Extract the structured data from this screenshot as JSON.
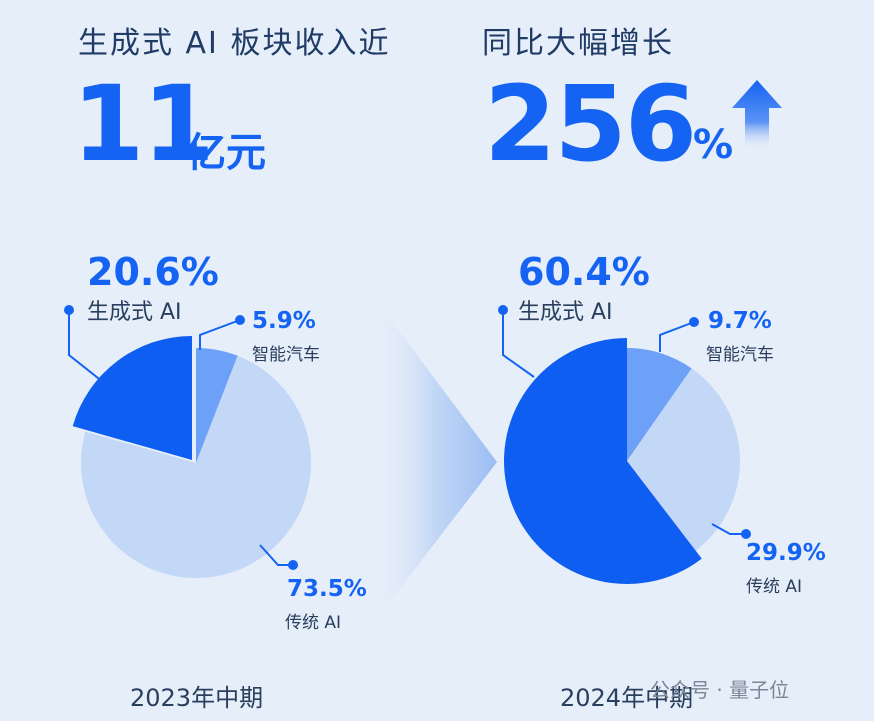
{
  "headline": {
    "revenue_title": "生成式 AI 板块收入近",
    "revenue_value": "11",
    "revenue_unit": "亿元",
    "growth_title": "同比大幅增长",
    "growth_value": "256",
    "growth_unit": "%"
  },
  "chart_data": [
    {
      "type": "pie",
      "period": "2023年中期",
      "slices": [
        {
          "label": "生成式 AI",
          "value": 20.6,
          "display": "20.6%",
          "color": "#0f5ef2"
        },
        {
          "label": "智能汽车",
          "value": 5.9,
          "display": "5.9%",
          "color": "#6da1f8"
        },
        {
          "label": "传统 AI",
          "value": 73.5,
          "display": "73.5%",
          "color": "#c3d7f7"
        }
      ]
    },
    {
      "type": "pie",
      "period": "2024年中期",
      "slices": [
        {
          "label": "生成式 AI",
          "value": 60.4,
          "display": "60.4%",
          "color": "#0f5ef2"
        },
        {
          "label": "智能汽车",
          "value": 9.7,
          "display": "9.7%",
          "color": "#6da1f8"
        },
        {
          "label": "传统 AI",
          "value": 29.9,
          "display": "29.9%",
          "color": "#c3d7f7"
        }
      ]
    }
  ],
  "watermark": "公众号 · 量子位",
  "colors": {
    "accent": "#1463f3",
    "dark_text": "#1f3b66"
  }
}
